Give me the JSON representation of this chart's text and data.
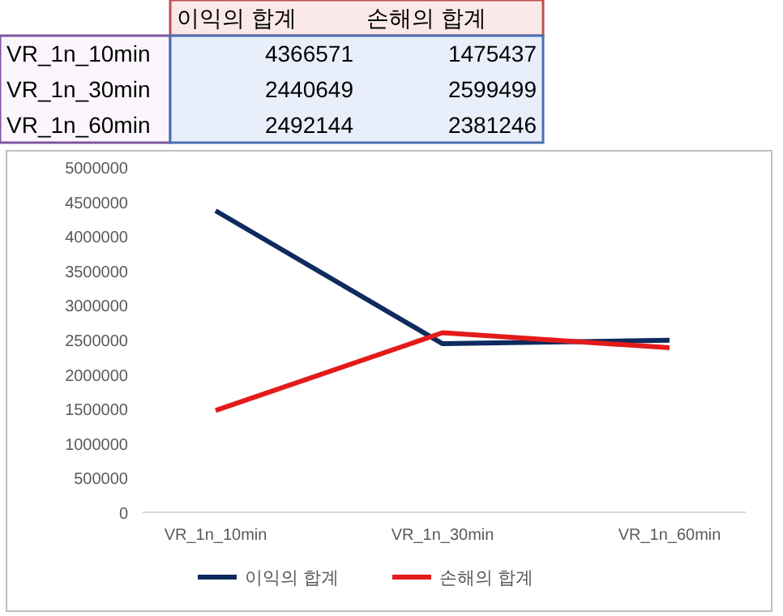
{
  "chart_data": {
    "type": "line",
    "categories": [
      "VR_1n_10min",
      "VR_1n_30min",
      "VR_1n_60min"
    ],
    "series": [
      {
        "name": "이익의 합계",
        "color": "#0f2a5e",
        "values": [
          4366571,
          2440649,
          2492144
        ]
      },
      {
        "name": "손해의 합계",
        "color": "#e31b1b",
        "values": [
          1475437,
          2599499,
          2381246
        ]
      }
    ],
    "ylim": [
      0,
      5000000
    ],
    "yticks": [
      0,
      500000,
      1000000,
      1500000,
      2000000,
      2500000,
      3000000,
      3500000,
      4000000,
      4500000,
      5000000
    ],
    "annotations": [
      "4366571",
      "1475437",
      "2440649",
      "2599499",
      "2492144",
      "2381246"
    ],
    "grid": false,
    "legend": "bottom",
    "marker": "none",
    "line_style": "solid"
  }
}
